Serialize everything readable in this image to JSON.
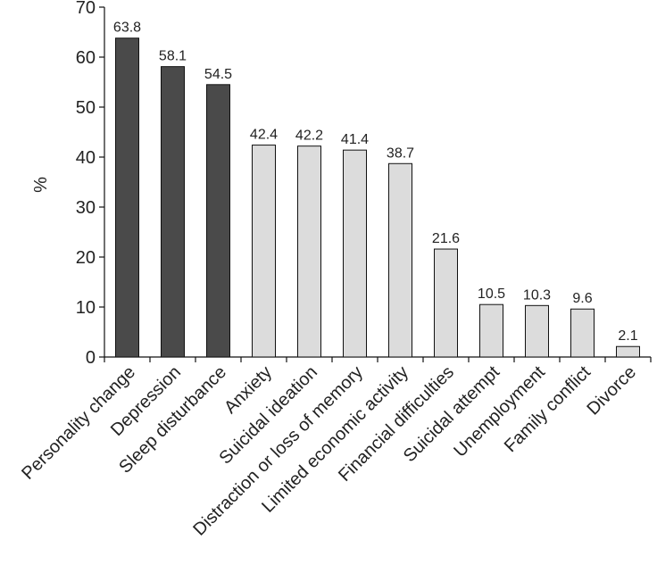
{
  "chart_data": {
    "type": "bar",
    "title": "",
    "xlabel": "",
    "ylabel": "%",
    "ylim": [
      0,
      70
    ],
    "yticks": [
      0,
      10,
      20,
      30,
      40,
      50,
      60,
      70
    ],
    "grid": false,
    "categories": [
      "Personality change",
      "Depression",
      "Sleep disturbance",
      "Anxiety",
      "Suicidal ideation",
      "Distraction or loss of memory",
      "Limited economic activity",
      "Financial difficulties",
      "Suicidal attempt",
      "Unemployment",
      "Family conflict",
      "Divorce"
    ],
    "values": [
      63.8,
      58.1,
      54.5,
      42.4,
      42.2,
      41.4,
      38.7,
      21.6,
      10.5,
      10.3,
      9.6,
      2.1
    ],
    "value_labels": [
      "63.8",
      "58.1",
      "54.5",
      "42.4",
      "42.2",
      "41.4",
      "38.7",
      "21.6",
      "10.5",
      "10.3",
      "9.6",
      "2.1"
    ],
    "bar_colors": [
      "#4a4a4a",
      "#4a4a4a",
      "#4a4a4a",
      "#dcdcdc",
      "#dcdcdc",
      "#dcdcdc",
      "#dcdcdc",
      "#dcdcdc",
      "#dcdcdc",
      "#dcdcdc",
      "#dcdcdc",
      "#dcdcdc"
    ],
    "bar_stroke": "#111111"
  }
}
